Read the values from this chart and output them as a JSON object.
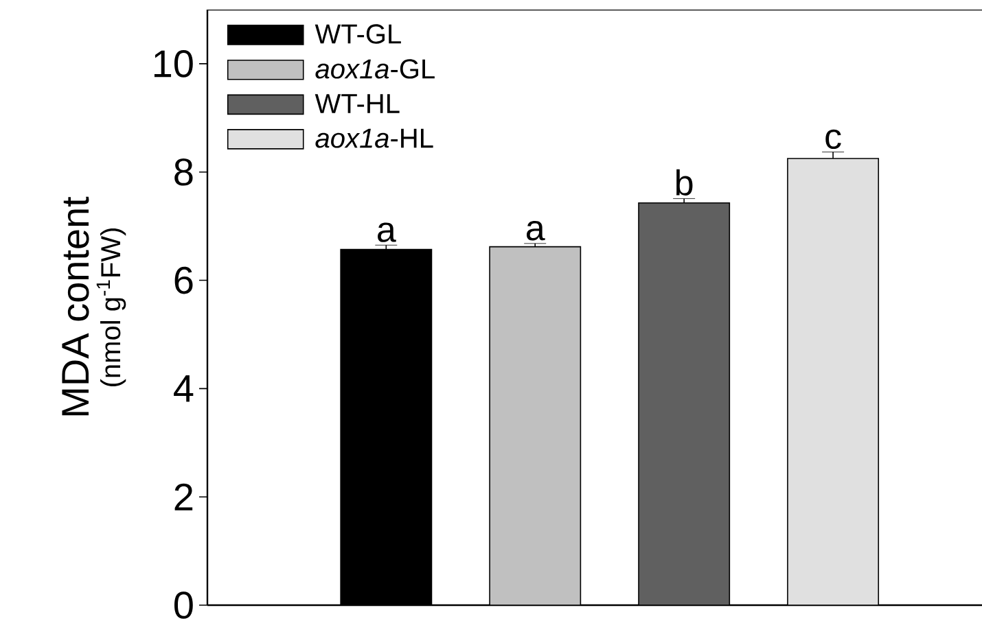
{
  "chart_data": {
    "type": "bar",
    "ylabel": "MDA content",
    "annotations": [
      "(nmol g$^{-1}$FW)"
    ],
    "categories": [
      null,
      null,
      null,
      null
    ],
    "series": [
      {
        "name": "WT-GL",
        "color": "#000000",
        "values": [
          6.57,
          null,
          null,
          null
        ],
        "errors": [
          0.08,
          null,
          null,
          null
        ],
        "value_labels": [
          "a",
          null,
          null,
          null
        ]
      },
      {
        "name": "*aox1a*-GL",
        "color": "#c0c0c0",
        "values": [
          null,
          6.62,
          null,
          null
        ],
        "errors": [
          null,
          0.06,
          null,
          null
        ],
        "value_labels": [
          null,
          "a",
          null,
          null
        ]
      },
      {
        "name": "WT-HL",
        "color": "#606060",
        "values": [
          null,
          null,
          7.43,
          null
        ],
        "errors": [
          null,
          null,
          0.08,
          null
        ],
        "value_labels": [
          null,
          null,
          "b",
          null
        ]
      },
      {
        "name": "*aox1a*-HL",
        "color": "#e0e0e0",
        "values": [
          null,
          null,
          null,
          8.25
        ],
        "errors": [
          null,
          null,
          null,
          0.12
        ],
        "value_labels": [
          null,
          null,
          null,
          "c"
        ]
      }
    ],
    "ylim": [
      0,
      11
    ],
    "yticks": [
      0,
      2,
      4,
      6,
      8,
      10
    ],
    "legend": "top left",
    "grid": false
  }
}
